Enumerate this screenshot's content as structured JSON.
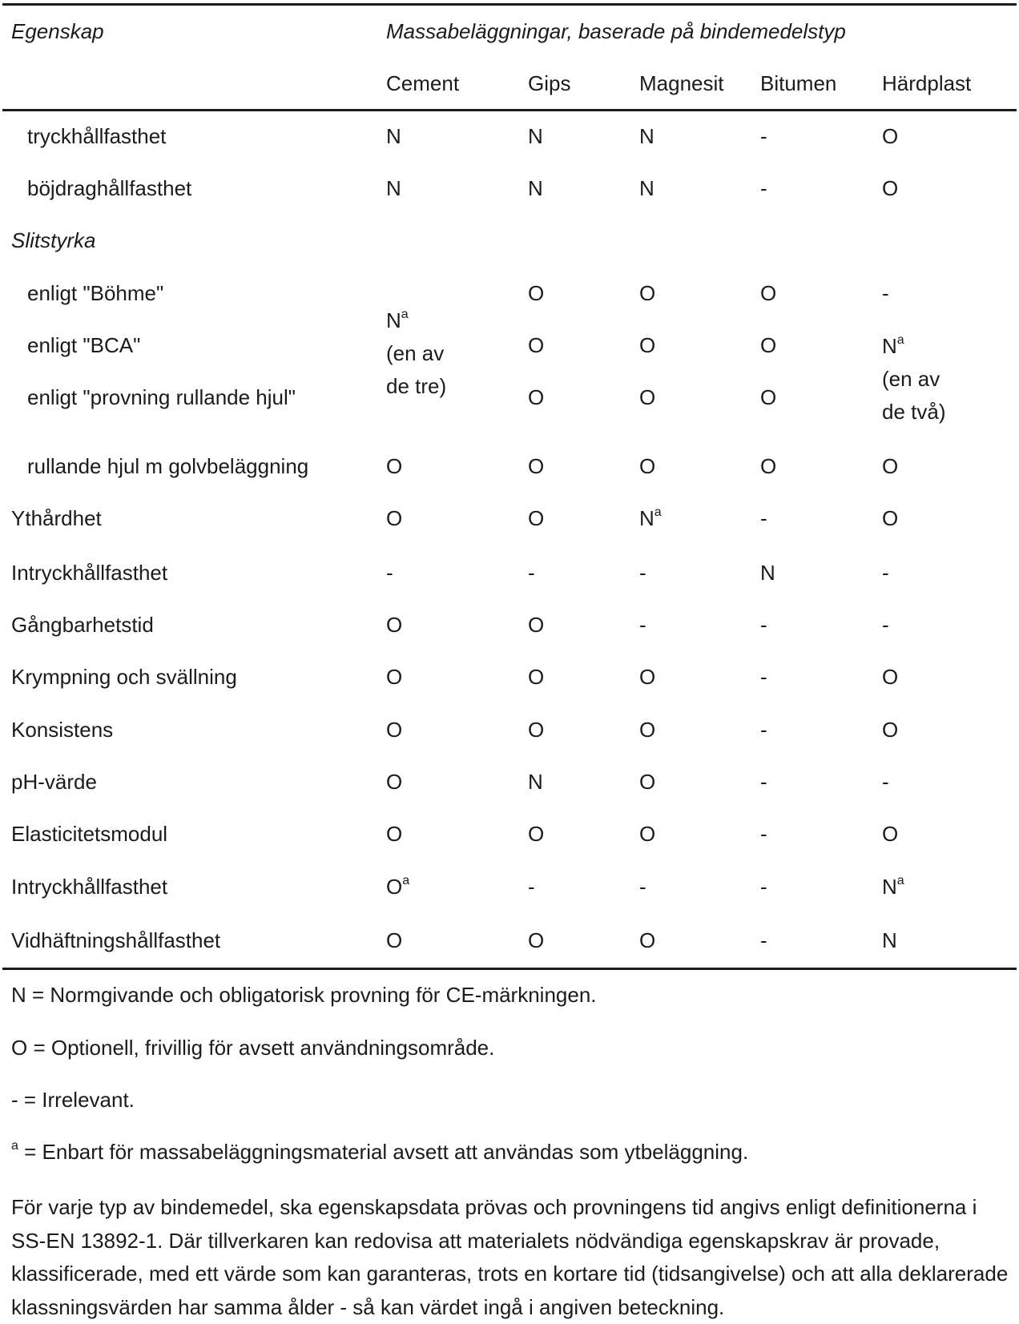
{
  "table": {
    "header": {
      "property_label": "Egenskap",
      "group_label": "Massabeläggningar, baserade på bindemedelstyp",
      "columns": [
        "Cement",
        "Gips",
        "Magnesit",
        "Bitumen",
        "Härdplast"
      ]
    },
    "rows": [
      {
        "label": "tryckhållfasthet",
        "cells": [
          "N",
          "N",
          "N",
          "-",
          "O"
        ]
      },
      {
        "label": "böjdraghållfasthet",
        "cells": [
          "N",
          "N",
          "N",
          "-",
          "O"
        ]
      },
      {
        "label": "Slitstyrka"
      },
      {
        "label": "enligt \"Böhme\"",
        "cells": [
          "",
          "O",
          "O",
          "O",
          "-"
        ]
      },
      {
        "label": "enligt \"BCA\"",
        "cells": [
          "",
          "O",
          "O",
          "O",
          ""
        ]
      },
      {
        "label": "enligt \"provning rullande hjul\"",
        "cells": [
          "",
          "O",
          "O",
          "O",
          ""
        ]
      },
      {
        "label": "rullande hjul m golvbeläggning",
        "cells": [
          "O",
          "O",
          "O",
          "O",
          "O"
        ]
      },
      {
        "label": "Ythårdhet",
        "cells": [
          "O",
          "O",
          "N",
          "-",
          "O"
        ]
      },
      {
        "label": "Intryckhållfasthet",
        "cells": [
          "-",
          "-",
          "-",
          "N",
          "-"
        ]
      },
      {
        "label": "Gångbarhetstid",
        "cells": [
          "O",
          "O",
          "-",
          "-",
          "-"
        ]
      },
      {
        "label": "Krympning och svällning",
        "cells": [
          "O",
          "O",
          "O",
          "-",
          "O"
        ]
      },
      {
        "label": "Konsistens",
        "cells": [
          "O",
          "O",
          "O",
          "-",
          "O"
        ]
      },
      {
        "label": "pH-värde",
        "cells": [
          "O",
          "N",
          "O",
          "-",
          "-"
        ]
      },
      {
        "label": "Elasticitetsmodul",
        "cells": [
          "O",
          "O",
          "O",
          "-",
          "O"
        ]
      },
      {
        "label": "Intryckhållfasthet",
        "cells": [
          "O",
          "-",
          "-",
          "-",
          "N"
        ]
      },
      {
        "label": "Vidhäftningshållfasthet",
        "cells": [
          "O",
          "O",
          "O",
          "-",
          "N"
        ]
      }
    ],
    "merged": {
      "cement_slitstyrka": {
        "value": "N",
        "note": "(en av",
        "note2": "de tre)"
      },
      "hardplast_slitstyrka": {
        "value": "N",
        "note": "(en av",
        "note2": "de två)"
      }
    },
    "footnote_mark": "a"
  },
  "notes": {
    "n": "N = Normgivande och obligatorisk provning för CE-märkningen.",
    "o": "O = Optionell, frivillig för avsett användningsområde.",
    "dash": "- = Irrelevant.",
    "a_mark": "a",
    "a_text": " = Enbart för massabeläggningsmaterial avsett att användas som ytbeläggning.",
    "paragraph": "För varje typ av bindemedel, ska egenskapsdata prövas och provningens tid angivs enligt definitio­nerna i SS-EN 13892-1. Där tillverkaren kan redovisa att materialets nödvändiga egenskapskrav är provade, klassificerade, med ett värde som kan garanteras, trots en kortare tid (tidsangivelse) och att alla deklarerade klassningsvärden har samma ålder - så kan värdet ingå i angiven beteckning."
  }
}
